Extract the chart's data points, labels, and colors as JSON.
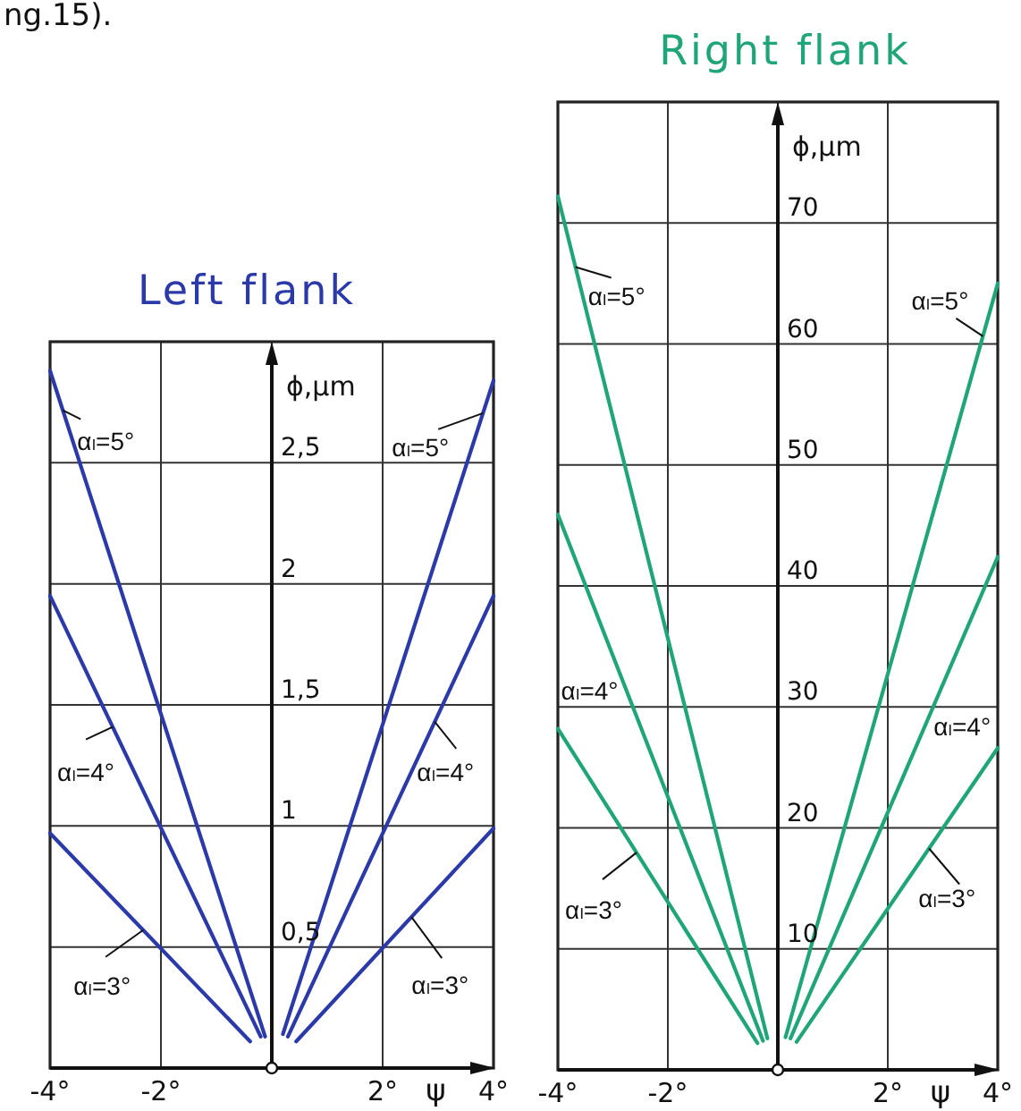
{
  "chart_data": [
    {
      "type": "line",
      "title": "Left flank",
      "xlabel": "ψ",
      "ylabel": "ϕ,μm",
      "annotations": [
        "ng.15)."
      ],
      "xlim": [
        -4,
        4
      ],
      "xticks": [
        {
          "value": -4,
          "label": "-4°"
        },
        {
          "value": -2,
          "label": "-2°"
        },
        {
          "value": 0,
          "label": null
        },
        {
          "value": 2,
          "label": "2°"
        },
        {
          "value": 4,
          "label": "4°"
        }
      ],
      "ylim": [
        0,
        3
      ],
      "yticks": [
        {
          "value": 0.5,
          "label": "0,5"
        },
        1,
        {
          "value": 1.5,
          "label": "1,5"
        },
        2,
        {
          "value": 2.5,
          "label": "2,5"
        }
      ],
      "grid": true,
      "series": [
        {
          "name": "αₗ=3°",
          "color": "#2b3aa8",
          "x": [
            -4,
            -0.39
          ],
          "values": [
            0.97,
            0.11
          ]
        },
        {
          "name": "αₗ=4°",
          "color": "#2b3aa8",
          "x": [
            -4,
            -0.2
          ],
          "values": [
            1.95,
            0.13
          ]
        },
        {
          "name": "αₗ=5°",
          "color": "#2b3aa8",
          "x": [
            -4,
            -0.12
          ],
          "values": [
            2.88,
            0.13
          ]
        },
        {
          "name": "αₗ=3°",
          "color": "#2b3aa8",
          "x": [
            0.44,
            4
          ],
          "values": [
            0.11,
            0.99
          ]
        },
        {
          "name": "αₗ=4°",
          "color": "#2b3aa8",
          "x": [
            0.29,
            4
          ],
          "values": [
            0.13,
            1.95
          ]
        },
        {
          "name": "αₗ=5°",
          "color": "#2b3aa8",
          "x": [
            0.2,
            4
          ],
          "values": [
            0.14,
            2.84
          ]
        }
      ]
    },
    {
      "type": "line",
      "title": "Right flank",
      "xlabel": "ψ",
      "ylabel": "ϕ,μm",
      "xlim": [
        -4,
        4
      ],
      "xticks": [
        {
          "value": -4,
          "label": "-4°"
        },
        {
          "value": -2,
          "label": "-2°"
        },
        {
          "value": 0,
          "label": null
        },
        {
          "value": 2,
          "label": "2°"
        },
        {
          "value": 4,
          "label": "4°"
        }
      ],
      "ylim": [
        0,
        80
      ],
      "yticks": [
        10,
        20,
        30,
        40,
        50,
        60,
        70
      ],
      "grid": true,
      "series": [
        {
          "name": "αₗ=3°",
          "color": "#1fa578",
          "x": [
            -4,
            -0.37
          ],
          "values": [
            28.2,
            2.2
          ]
        },
        {
          "name": "αₗ=4°",
          "color": "#1fa578",
          "x": [
            -4,
            -0.27
          ],
          "values": [
            45.9,
            2.4
          ]
        },
        {
          "name": "αₗ=5°",
          "color": "#1fa578",
          "x": [
            -4,
            -0.19
          ],
          "values": [
            72.2,
            2.6
          ]
        },
        {
          "name": "αₗ=3°",
          "color": "#1fa578",
          "x": [
            0.34,
            4
          ],
          "values": [
            2.3,
            26.6
          ]
        },
        {
          "name": "αₗ=4°",
          "color": "#1fa578",
          "x": [
            0.23,
            4
          ],
          "values": [
            2.6,
            42.4
          ]
        },
        {
          "name": "αₗ=5°",
          "color": "#1fa578",
          "x": [
            0.14,
            4
          ],
          "values": [
            2.7,
            65
          ]
        }
      ]
    }
  ]
}
